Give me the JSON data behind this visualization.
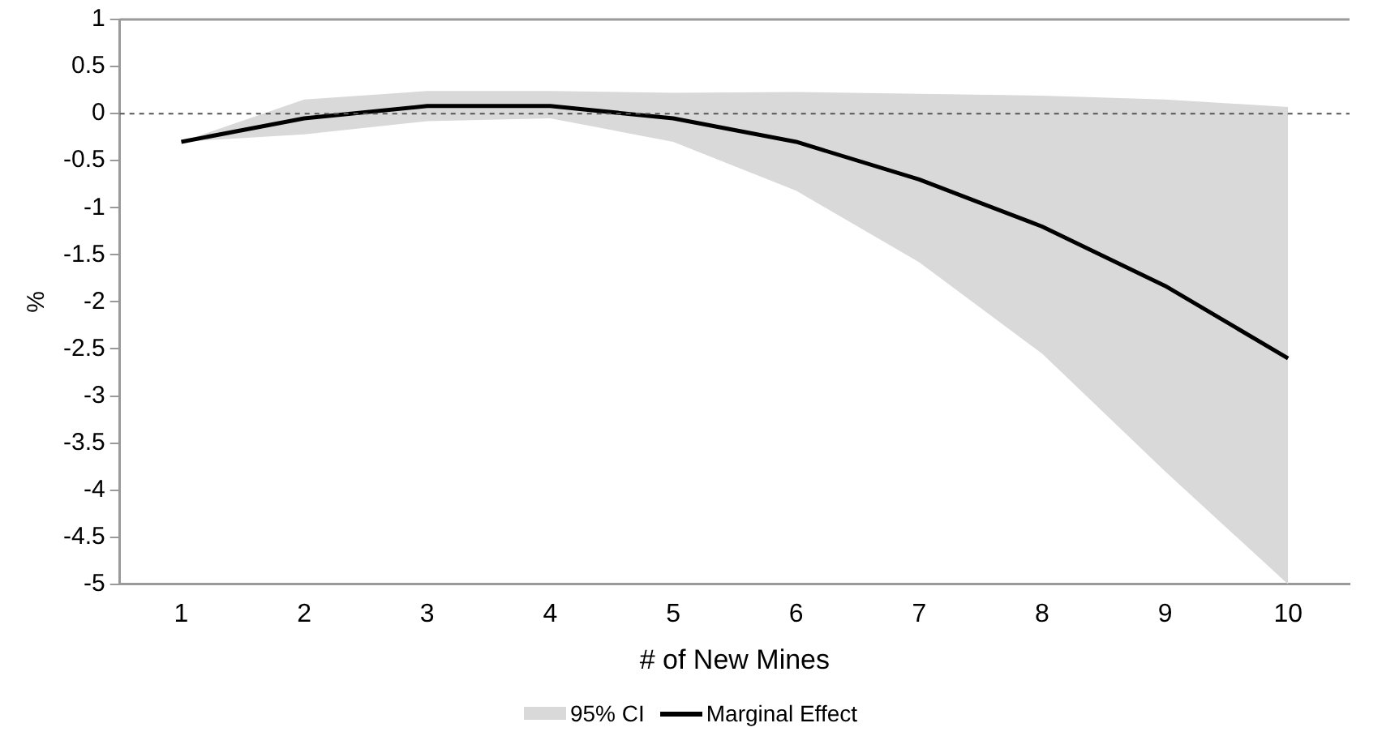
{
  "chart_data": {
    "type": "line",
    "xlabel": "# of New Mines",
    "ylabel": "%",
    "categories": [
      "1",
      "2",
      "3",
      "4",
      "5",
      "6",
      "7",
      "8",
      "9",
      "10"
    ],
    "ylim": [
      -5,
      1
    ],
    "yticks": [
      1,
      0.5,
      0,
      -0.5,
      -1,
      -1.5,
      -2,
      -2.5,
      -3,
      -3.5,
      -4,
      -4.5,
      -5
    ],
    "series": [
      {
        "name": "Marginal Effect",
        "type": "line",
        "color": "#000000",
        "values": [
          -0.3,
          -0.05,
          0.08,
          0.08,
          -0.05,
          -0.3,
          -0.7,
          -1.2,
          -1.83,
          -2.6
        ],
        "lower": [
          -0.3,
          -0.22,
          -0.08,
          -0.05,
          -0.3,
          -0.82,
          -1.58,
          -2.55,
          -3.8,
          -5
        ],
        "upper": [
          -0.3,
          0.15,
          0.24,
          0.24,
          0.22,
          0.23,
          0.21,
          0.19,
          0.15,
          0.07
        ]
      }
    ],
    "annotations": [
      "95% CI"
    ],
    "ref_lines": [
      {
        "axis": "y",
        "value": 0,
        "line_style": "dashed",
        "color": "#555555"
      }
    ],
    "grid": false,
    "legend": "bottom",
    "marker": "none"
  }
}
